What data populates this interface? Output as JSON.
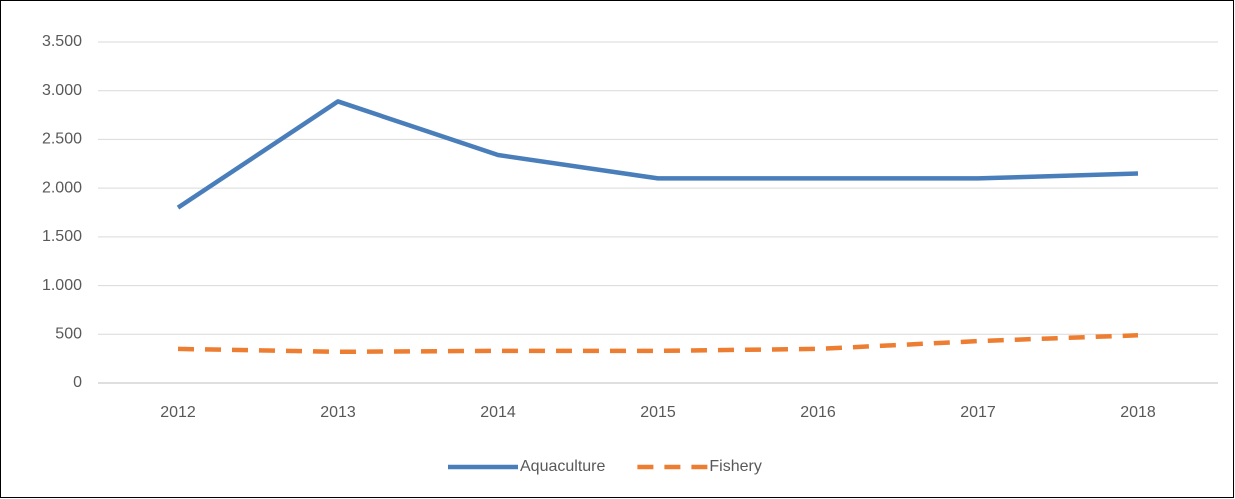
{
  "chart_data": {
    "type": "line",
    "categories": [
      "2012",
      "2013",
      "2014",
      "2015",
      "2016",
      "2017",
      "2018"
    ],
    "series": [
      {
        "name": "Aquaculture",
        "color": "#4a7ebb",
        "values": [
          1800,
          2890,
          2340,
          2100,
          2100,
          2100,
          2150
        ]
      },
      {
        "name": "Fishery",
        "color": "#ed7d31",
        "values": [
          350,
          320,
          330,
          330,
          350,
          430,
          490
        ]
      }
    ],
    "ylim": [
      0,
      3500
    ],
    "yticks": [
      0,
      500,
      {
        "value": 1000,
        "label": "1.000"
      },
      {
        "value": 1500,
        "label": "1.500"
      },
      {
        "value": 2000,
        "label": "2.000"
      },
      {
        "value": 2500,
        "label": "2.500"
      },
      {
        "value": 3000,
        "label": "3.000"
      },
      {
        "value": 3500,
        "label": "3.500"
      }
    ],
    "grid": true,
    "legend": "bottom"
  }
}
